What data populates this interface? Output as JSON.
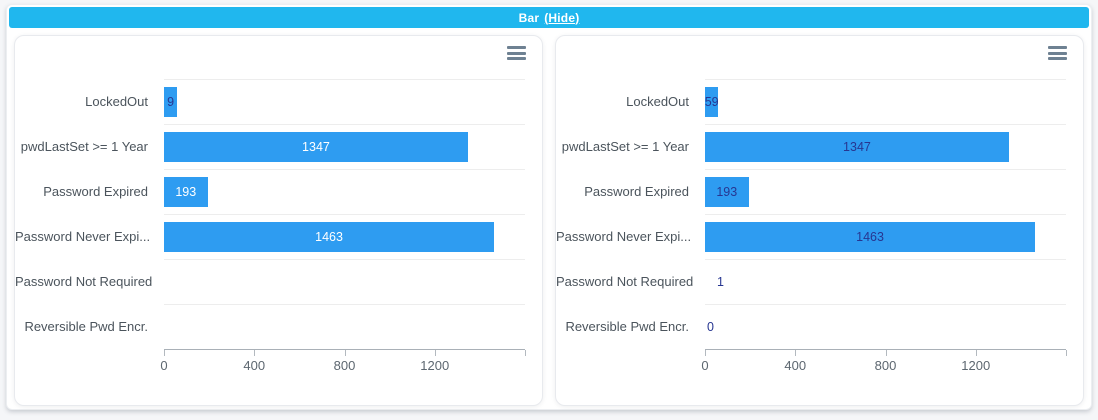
{
  "header": {
    "title": "Bar",
    "hide_label": "(Hide)",
    "bg": "#20B7EE",
    "text_color": "#ffffff"
  },
  "colors": {
    "bar": "#2E9CF1",
    "value_label_dark": "#273691",
    "value_label_light": "#ffffff",
    "grid_line": "#ededed",
    "axis_line": "#a9b0b7",
    "category_text": "#4b545c",
    "tick_text": "#5d6770",
    "menu_icon": "#6E8192"
  },
  "charts": [
    {
      "name": "password-status-bar-chart-left",
      "menu_icon": "hamburger-icon",
      "axis": {
        "max": 1600,
        "ticks": [
          0,
          400,
          800,
          1200
        ],
        "end_tick": 1600
      },
      "rows": [
        {
          "category": "LockedOut",
          "value": 59,
          "label": {
            "text": "9",
            "tone": "dark",
            "position": "center"
          }
        },
        {
          "category": "pwdLastSet >= 1 Year",
          "value": 1347,
          "label": {
            "text": "1347",
            "tone": "light",
            "position": "center"
          }
        },
        {
          "category": "Password Expired",
          "value": 193,
          "label": {
            "text": "193",
            "tone": "light",
            "position": "center"
          }
        },
        {
          "category": "Password Never Expi...",
          "value": 1463,
          "label": {
            "text": "1463",
            "tone": "light",
            "position": "center"
          }
        },
        {
          "category": "Password Not Required",
          "value": 1,
          "label": {
            "text": "",
            "tone": "dark",
            "position": "none"
          }
        },
        {
          "category": "Reversible Pwd Encr.",
          "value": 0,
          "label": {
            "text": "",
            "tone": "dark",
            "position": "none"
          }
        }
      ]
    },
    {
      "name": "password-status-bar-chart-right",
      "menu_icon": "hamburger-icon",
      "axis": {
        "max": 1600,
        "ticks": [
          0,
          400,
          800,
          1200
        ],
        "end_tick": 1600
      },
      "rows": [
        {
          "category": "LockedOut",
          "value": 59,
          "label": {
            "text": "59",
            "tone": "dark",
            "position": "center"
          }
        },
        {
          "category": "pwdLastSet >= 1 Year",
          "value": 1347,
          "label": {
            "text": "1347",
            "tone": "dark",
            "position": "center"
          }
        },
        {
          "category": "Password Expired",
          "value": 193,
          "label": {
            "text": "193",
            "tone": "dark",
            "position": "center"
          }
        },
        {
          "category": "Password Never Expi...",
          "value": 1463,
          "label": {
            "text": "1463",
            "tone": "dark",
            "position": "center"
          }
        },
        {
          "category": "Password Not Required",
          "value": 1,
          "label": {
            "text": "1",
            "tone": "dark",
            "position": "near-axis"
          }
        },
        {
          "category": "Reversible Pwd Encr.",
          "value": 0,
          "label": {
            "text": "0",
            "tone": "dark",
            "position": "at-axis"
          }
        }
      ]
    }
  ],
  "chart_data": [
    {
      "type": "bar",
      "orientation": "horizontal",
      "title": "",
      "categories": [
        "LockedOut",
        "pwdLastSet >= 1 Year",
        "Password Expired",
        "Password Never Expi...",
        "Password Not Required",
        "Reversible Pwd Encr."
      ],
      "values": [
        59,
        1347,
        193,
        1463,
        1,
        0
      ],
      "xlim": [
        0,
        1600
      ],
      "xticks": [
        0,
        400,
        800,
        1200
      ],
      "xlabel": "",
      "ylabel": "",
      "legend": false,
      "grid": "horizontal category split lines",
      "bar_color": "#2E9CF1",
      "value_labels": "white inside bars; clipped to '9' on LockedOut; none shown for values 1 and 0"
    },
    {
      "type": "bar",
      "orientation": "horizontal",
      "title": "",
      "categories": [
        "LockedOut",
        "pwdLastSet >= 1 Year",
        "Password Expired",
        "Password Never Expi...",
        "Password Not Required",
        "Reversible Pwd Encr."
      ],
      "values": [
        59,
        1347,
        193,
        1463,
        1,
        0
      ],
      "xlim": [
        0,
        1600
      ],
      "xticks": [
        0,
        400,
        800,
        1200
      ],
      "xlabel": "",
      "ylabel": "",
      "legend": false,
      "grid": "horizontal category split lines",
      "bar_color": "#2E9CF1",
      "value_labels": "dark navy; all values shown including 1 and 0"
    }
  ]
}
